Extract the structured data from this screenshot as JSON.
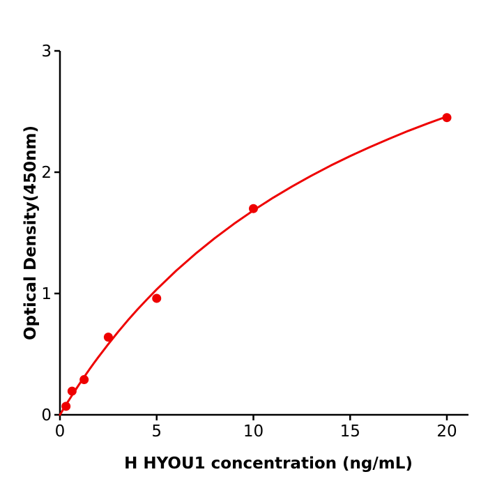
{
  "figure": {
    "background_color": "#ffffff"
  },
  "chart_data": {
    "type": "scatter",
    "title": "",
    "xlabel": "H  HYOU1 concentration (ng/mL)",
    "ylabel": "Optical Density(450nm)",
    "xlim": [
      0,
      21.1
    ],
    "ylim": [
      0,
      3
    ],
    "xticks": [
      0,
      5,
      10,
      15,
      20
    ],
    "yticks": [
      0,
      1,
      2,
      3
    ],
    "grid": false,
    "legend": "none",
    "axis_color": "#000000",
    "point_color": "#ee0000",
    "line_color": "#ee0000",
    "points": [
      {
        "x": 0.313,
        "y": 0.07
      },
      {
        "x": 0.625,
        "y": 0.195
      },
      {
        "x": 1.25,
        "y": 0.29
      },
      {
        "x": 2.5,
        "y": 0.64
      },
      {
        "x": 5,
        "y": 0.96
      },
      {
        "x": 10,
        "y": 1.7
      },
      {
        "x": 20,
        "y": 2.45
      }
    ],
    "fit_curve": {
      "x": [
        0,
        0.1,
        0.25,
        0.4,
        0.6,
        0.8,
        1.0,
        1.25,
        1.5,
        1.75,
        2.0,
        2.5,
        3.0,
        3.5,
        4.0,
        4.5,
        5.0,
        6.0,
        7.0,
        8.0,
        9.0,
        10.0,
        11.0,
        12.0,
        13.0,
        14.0,
        15.0,
        16.0,
        17.0,
        18.0,
        19.0,
        20.0
      ],
      "y": [
        0,
        0.027,
        0.066,
        0.105,
        0.155,
        0.204,
        0.253,
        0.312,
        0.369,
        0.425,
        0.479,
        0.583,
        0.683,
        0.777,
        0.867,
        0.952,
        1.034,
        1.187,
        1.327,
        1.456,
        1.575,
        1.685,
        1.788,
        1.883,
        1.972,
        2.055,
        2.133,
        2.206,
        2.275,
        2.34,
        2.401,
        2.459
      ]
    }
  }
}
